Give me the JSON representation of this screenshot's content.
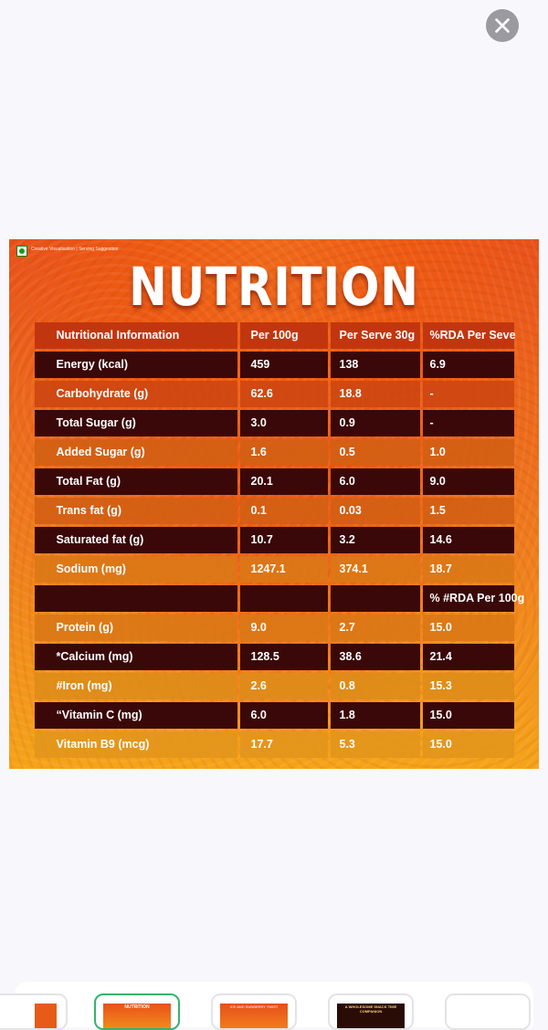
{
  "image": {
    "caption": "Creative Visualisation | Serving Suggestion",
    "headline": "NUTRITION"
  },
  "table": {
    "headers": [
      "Nutritional Information",
      "Per 100g",
      "Per Serve 30g",
      "%RDA Per Seve"
    ],
    "rows": [
      [
        "Energy (kcal)",
        "459",
        "138",
        "6.9"
      ],
      [
        "Carbohydrate (g)",
        "62.6",
        "18.8",
        "-"
      ],
      [
        "Total Sugar (g)",
        "3.0",
        "0.9",
        "-"
      ],
      [
        "Added Sugar (g)",
        "1.6",
        "0.5",
        "1.0"
      ],
      [
        "Total Fat (g)",
        "20.1",
        "6.0",
        "9.0"
      ],
      [
        "Trans fat (g)",
        "0.1",
        "0.03",
        "1.5"
      ],
      [
        "Saturated fat (g)",
        "10.7",
        "3.2",
        "14.6"
      ],
      [
        "Sodium (mg)",
        "1247.1",
        "374.1",
        "18.7"
      ],
      [
        "",
        "",
        "",
        "% #RDA Per 100g"
      ],
      [
        "Protein (g)",
        "9.0",
        "2.7",
        "15.0"
      ],
      [
        "*Calcium (mg)",
        "128.5",
        "38.6",
        "21.4"
      ],
      [
        "#Iron (mg)",
        "2.6",
        "0.8",
        "15.3"
      ],
      [
        "“Vitamin C (mg)",
        "6.0",
        "1.8",
        "15.0"
      ],
      [
        "Vitamin B9 (mcg)",
        "17.7",
        "5.3",
        "15.0"
      ]
    ]
  },
  "thumbnails": {
    "items": [
      {
        "title": ""
      },
      {
        "title": "NUTRITION"
      },
      {
        "title": "ICE AND SUNBERRY TWIST"
      },
      {
        "title": "A WHOLESOME SNACK TIME COMPANION"
      },
      {
        "title": ""
      }
    ],
    "selected_index": 1
  },
  "colors": {
    "accent_selected": "#35b36a",
    "dark_row": "#3a0809",
    "header_row": "#c2360f"
  },
  "icons": {
    "close": "close-icon",
    "veg_mark": "veg-mark-icon"
  }
}
